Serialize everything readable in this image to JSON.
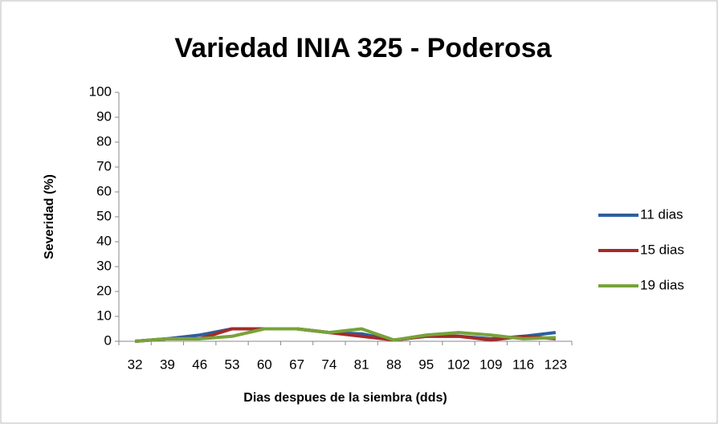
{
  "chart_data": {
    "type": "line",
    "title": "Variedad INIA 325 - Poderosa",
    "x_label": "Dias despues de la siembra (dds)",
    "y_label": "Severidad (%)",
    "categories": [
      "32",
      "39",
      "46",
      "53",
      "60",
      "67",
      "74",
      "81",
      "88",
      "95",
      "102",
      "109",
      "116",
      "123"
    ],
    "series": [
      {
        "name": "11 dias",
        "color": "#2e5f9e",
        "values": [
          0,
          1,
          2.5,
          5,
          5,
          5,
          3.5,
          3,
          0.5,
          2,
          2,
          1,
          2,
          3.5
        ]
      },
      {
        "name": "15 dias",
        "color": "#a52a2a",
        "values": [
          0,
          1,
          1,
          5,
          5,
          5,
          3.5,
          2,
          0.5,
          2,
          2,
          0.5,
          2,
          1
        ]
      },
      {
        "name": "19 dias",
        "color": "#77a33a",
        "values": [
          0,
          1,
          1,
          2,
          5,
          5,
          3.5,
          5,
          0.5,
          2.5,
          3.5,
          2.5,
          1,
          1.5
        ]
      }
    ],
    "ylim": [
      0,
      100
    ],
    "yticks": [
      0,
      10,
      20,
      30,
      40,
      50,
      60,
      70,
      80,
      90,
      100
    ],
    "legend": "right"
  }
}
